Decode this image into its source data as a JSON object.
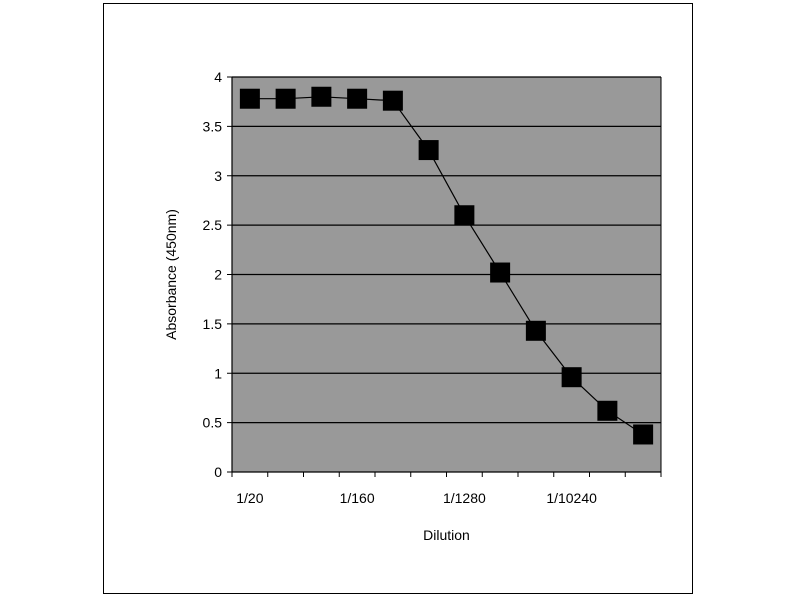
{
  "chart_data": {
    "type": "line",
    "title": "",
    "xlabel": "Dilution",
    "ylabel": "Absorbance (450nm)",
    "ylim": [
      0,
      4
    ],
    "y_ticks": [
      "0",
      "0.5",
      "1",
      "1.5",
      "2",
      "2.5",
      "3",
      "3.5",
      "4"
    ],
    "x_tick_labels": [
      "1/20",
      "1/160",
      "1/1280",
      "1/10240"
    ],
    "grid": true,
    "legend": "none",
    "plot_background": "#999999",
    "marker_color": "#000000",
    "x": [
      "1/20",
      "1/40",
      "1/80",
      "1/160",
      "1/320",
      "1/640",
      "1/1280",
      "1/2560",
      "1/5120",
      "1/10240",
      "1/20480",
      "1/40960"
    ],
    "series": [
      {
        "values": [
          3.78,
          3.78,
          3.8,
          3.78,
          3.76,
          3.26,
          2.6,
          2.02,
          1.43,
          0.96,
          0.62,
          0.38
        ]
      }
    ]
  }
}
